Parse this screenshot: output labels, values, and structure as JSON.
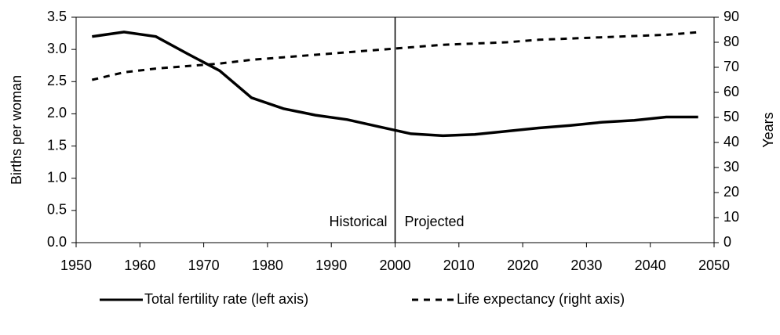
{
  "chart_data": {
    "type": "line",
    "x": [
      1952.5,
      1957.5,
      1962.5,
      1967.5,
      1972.5,
      1977.5,
      1982.5,
      1987.5,
      1992.5,
      1997.5,
      2002.5,
      2007.5,
      2012.5,
      2017.5,
      2022.5,
      2027.5,
      2032.5,
      2037.5,
      2042.5,
      2047.5
    ],
    "series": [
      {
        "name": "Total fertility rate (left axis)",
        "color": "#000000",
        "dash": "solid",
        "values": [
          3.2,
          3.27,
          3.2,
          2.93,
          2.67,
          2.25,
          2.08,
          1.98,
          1.91,
          1.8,
          1.69,
          1.66,
          1.68,
          1.73,
          1.78,
          1.82,
          1.87,
          1.9,
          1.95,
          1.95
        ]
      },
      {
        "name": "Life expectancy (right axis)",
        "color": "#000000",
        "dash": "dashed",
        "axis": "y2",
        "values": [
          65,
          68,
          69.5,
          70.5,
          71.5,
          73,
          74,
          75,
          76,
          77,
          78,
          79,
          79.5,
          80,
          81,
          81.5,
          82,
          82.5,
          83,
          84
        ]
      }
    ],
    "y_label": "Births per woman",
    "y2_label": "Years",
    "xlim": [
      1950,
      2050
    ],
    "xticks": [
      1950,
      1960,
      1970,
      1980,
      1990,
      2000,
      2010,
      2020,
      2030,
      2040,
      2050
    ],
    "ylim": [
      0,
      3.5
    ],
    "yticks": [
      {
        "value": 0,
        "label": "0.0"
      },
      0.5,
      {
        "value": 1,
        "label": "1.0"
      },
      1.5,
      {
        "value": 2,
        "label": "2.0"
      },
      2.5,
      {
        "value": 3,
        "label": "3.0"
      },
      3.5
    ],
    "y2lim": [
      0,
      90
    ],
    "y2ticks": [
      0,
      10,
      20,
      30,
      40,
      50,
      60,
      70,
      80,
      90
    ],
    "divider": {
      "x": 2000,
      "left_label": "Historical",
      "right_label": "Projected"
    },
    "legend": "bottom"
  }
}
